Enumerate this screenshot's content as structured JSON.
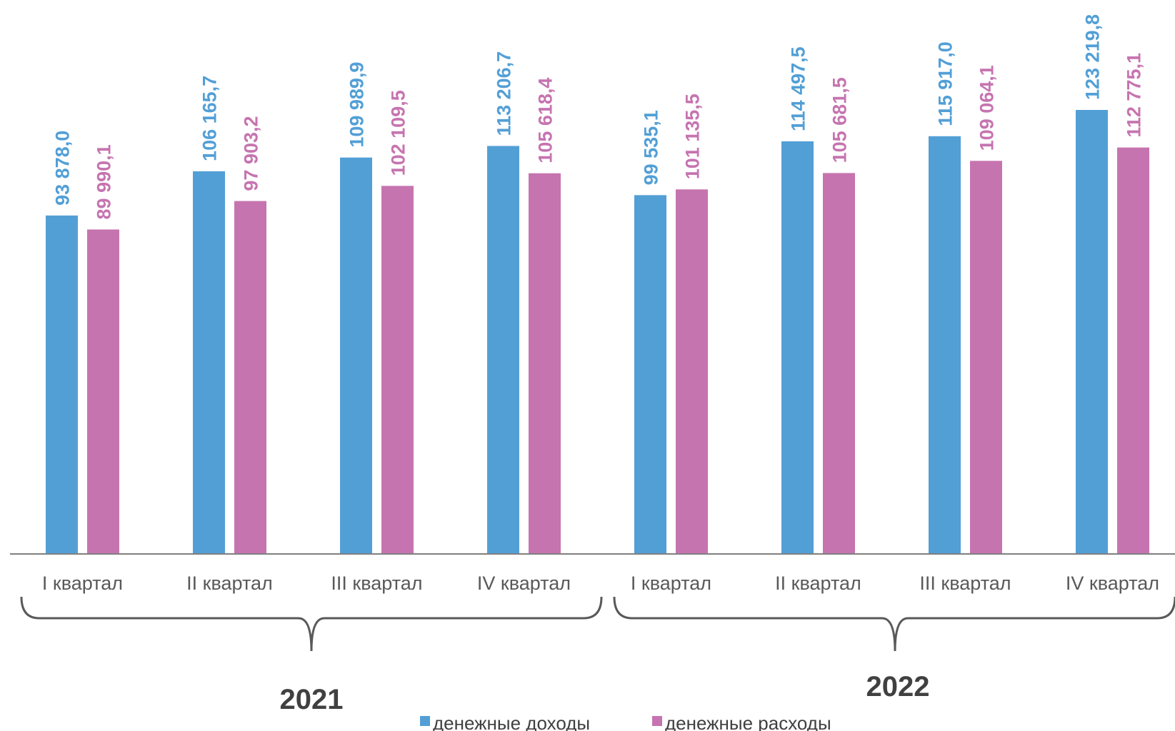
{
  "chart_data": {
    "type": "bar",
    "categories": [
      "I квартал",
      "II квартал",
      "III квартал",
      "IV квартал",
      "I квартал",
      "II квартал",
      "III квартал",
      "IV квартал"
    ],
    "groups": [
      {
        "label": "2021",
        "categories": [
          0,
          1,
          2,
          3
        ]
      },
      {
        "label": "2022",
        "categories": [
          4,
          5,
          6,
          7
        ]
      }
    ],
    "series": [
      {
        "name": "денежные доходы",
        "color": "#529FD6",
        "values": [
          93878.0,
          106165.7,
          109989.9,
          113206.7,
          99535.1,
          114497.5,
          115917.0,
          123219.8
        ],
        "labels": [
          "93 878,0",
          "106 165,7",
          "109 989,9",
          "113 206,7",
          "99 535,1",
          "114 497,5",
          "115 917,0",
          "123 219,8"
        ]
      },
      {
        "name": "денежные расходы",
        "color": "#C674B0",
        "values": [
          89990.1,
          97903.2,
          102109.5,
          105618.4,
          101135.5,
          105681.5,
          109064.1,
          112775.1
        ],
        "labels": [
          "89 990,1",
          "97 903,2",
          "102 109,5",
          "105 618,4",
          "101 135,5",
          "105 681,5",
          "109 064,1",
          "112 775,1"
        ]
      }
    ],
    "ylim": [
      0,
      150000
    ],
    "legend_position": "bottom",
    "grid": false,
    "axis_color": "#808080",
    "label_color_series": true
  }
}
